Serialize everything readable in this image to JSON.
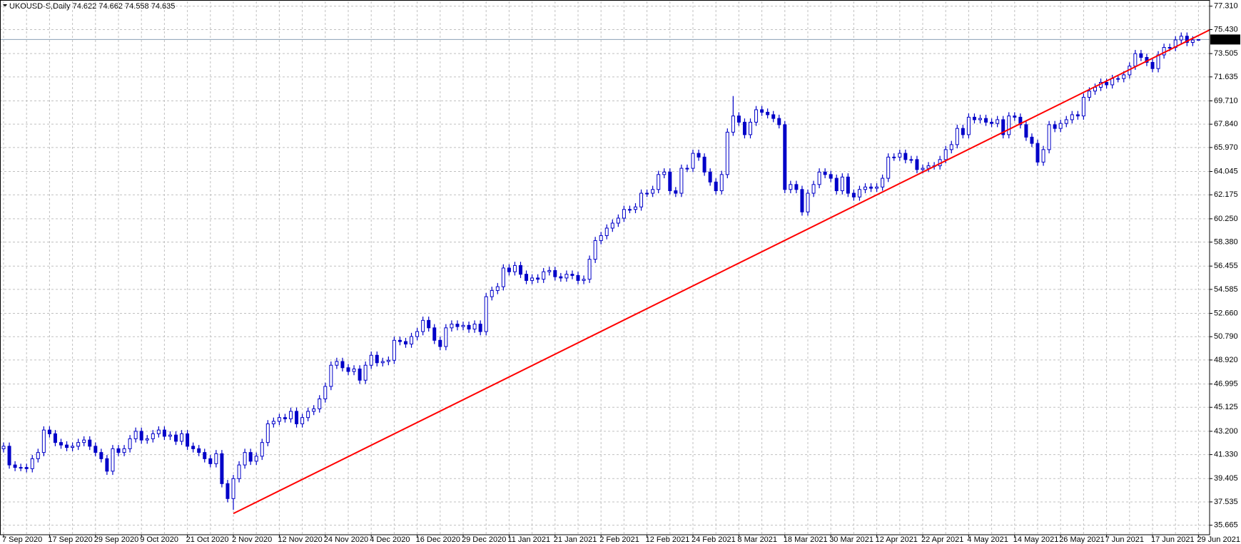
{
  "chart_data": {
    "type": "candlestick",
    "title": "UKOUSD-S,Daily  74.622 74.662 74.558 74.635",
    "categories": [
      "7 Sep 2020",
      null,
      null,
      null,
      null,
      null,
      null,
      null,
      "17 Sep 2020",
      null,
      null,
      null,
      null,
      null,
      null,
      null,
      "29 Sep 2020",
      null,
      null,
      null,
      null,
      null,
      null,
      null,
      "9 Oct 2020",
      null,
      null,
      null,
      null,
      null,
      null,
      null,
      "21 Oct 2020",
      null,
      null,
      null,
      null,
      null,
      null,
      null,
      "2 Nov 2020",
      null,
      null,
      null,
      null,
      null,
      null,
      null,
      "12 Nov 2020",
      null,
      null,
      null,
      null,
      null,
      null,
      null,
      "24 Nov 2020",
      null,
      null,
      null,
      null,
      null,
      null,
      null,
      "4 Dec 2020",
      null,
      null,
      null,
      null,
      null,
      null,
      null,
      "16 Dec 2020",
      null,
      null,
      null,
      null,
      null,
      null,
      null,
      "29 Dec 2020",
      null,
      null,
      null,
      null,
      null,
      null,
      null,
      "11 Jan 2021",
      null,
      null,
      null,
      null,
      null,
      null,
      null,
      "21 Jan 2021",
      null,
      null,
      null,
      null,
      null,
      null,
      null,
      "2 Feb 2021",
      null,
      null,
      null,
      null,
      null,
      null,
      null,
      "12 Feb 2021",
      null,
      null,
      null,
      null,
      null,
      null,
      null,
      "24 Feb 2021",
      null,
      null,
      null,
      null,
      null,
      null,
      null,
      "8 Mar 2021",
      null,
      null,
      null,
      null,
      null,
      null,
      null,
      "18 Mar 2021",
      null,
      null,
      null,
      null,
      null,
      null,
      null,
      "30 Mar 2021",
      null,
      null,
      null,
      null,
      null,
      null,
      null,
      "12 Apr 2021",
      null,
      null,
      null,
      null,
      null,
      null,
      null,
      "22 Apr 2021",
      null,
      null,
      null,
      null,
      null,
      null,
      null,
      "4 May 2021",
      null,
      null,
      null,
      null,
      null,
      null,
      null,
      "14 May 2021",
      null,
      null,
      null,
      null,
      null,
      null,
      null,
      "26 May 2021",
      null,
      null,
      null,
      null,
      null,
      null,
      null,
      "7 Jun 2021",
      null,
      null,
      null,
      null,
      null,
      null,
      null,
      "17 Jun 2021",
      null,
      null,
      null,
      null,
      null,
      null,
      null,
      "29 Jun 2021"
    ],
    "open": [
      41.8,
      42.0,
      40.5,
      40.3,
      40.3,
      40.2,
      41.0,
      41.5,
      43.3,
      43.0,
      42.3,
      42.1,
      41.9,
      42.0,
      42.3,
      42.5,
      42.0,
      41.5,
      41.0,
      40.0,
      41.8,
      41.5,
      41.8,
      42.6,
      43.2,
      42.5,
      42.6,
      43.0,
      43.3,
      42.8,
      42.9,
      42.4,
      43.0,
      42.0,
      41.8,
      41.5,
      41.0,
      40.6,
      41.4,
      39.0,
      37.8,
      39.4,
      40.5,
      41.5,
      40.8,
      41.2,
      42.3,
      43.8,
      44.0,
      44.3,
      44.2,
      44.8,
      43.8,
      44.3,
      44.8,
      45.0,
      45.8,
      46.8,
      48.5,
      48.8,
      48.3,
      48.0,
      48.2,
      47.3,
      48.5,
      49.3,
      48.7,
      48.8,
      48.9,
      50.5,
      50.4,
      50.2,
      50.8,
      51.2,
      52.1,
      51.5,
      50.5,
      50.0,
      51.5,
      51.8,
      51.6,
      51.7,
      51.4,
      51.8,
      51.2,
      54.0,
      54.5,
      54.8,
      56.3,
      56.0,
      56.5,
      55.8,
      55.3,
      55.5,
      55.4,
      56.0,
      56.1,
      55.6,
      55.5,
      55.8,
      55.7,
      55.3,
      55.4,
      57.0,
      58.5,
      58.9,
      59.5,
      59.9,
      60.3,
      61.0,
      61.0,
      61.2,
      62.3,
      62.3,
      62.6,
      63.8,
      64.0,
      62.5,
      62.3,
      64.3,
      64.3,
      65.5,
      65.2,
      64.0,
      63.2,
      62.5,
      63.8,
      67.2,
      68.5,
      68.0,
      67.0,
      68.0,
      69.0,
      68.8,
      68.6,
      68.3,
      67.8,
      62.6,
      63.0,
      62.6,
      60.8,
      62.3,
      63.0,
      64.0,
      63.8,
      63.5,
      62.5,
      63.6,
      62.3,
      62.0,
      62.6,
      62.8,
      62.7,
      62.8,
      63.5,
      65.2,
      65.2,
      65.5,
      65.0,
      65.0,
      64.2,
      64.3,
      64.5,
      64.5,
      65.0,
      65.8,
      66.2,
      67.5,
      67.0,
      68.4,
      68.2,
      68.3,
      68.0,
      67.9,
      68.2,
      67.0,
      68.5,
      68.4,
      67.8,
      66.8,
      66.3,
      64.8,
      65.8,
      67.8,
      67.5,
      67.9,
      68.2,
      68.6,
      68.5,
      70.0,
      70.5,
      70.8,
      71.2,
      71.0,
      71.5,
      71.5,
      71.8,
      72.5,
      73.5,
      73.2,
      72.8,
      72.3,
      73.4,
      74.0,
      74.0,
      74.6,
      74.9,
      74.4,
      74.622
    ],
    "high": [
      42.3,
      42.3,
      40.8,
      40.6,
      40.6,
      41.3,
      41.8,
      43.6,
      43.6,
      43.3,
      42.6,
      42.4,
      42.3,
      42.6,
      42.8,
      42.8,
      42.3,
      41.8,
      41.3,
      42.1,
      42.1,
      42.1,
      42.9,
      43.5,
      43.5,
      42.9,
      43.3,
      43.6,
      43.6,
      43.2,
      43.2,
      43.3,
      43.3,
      42.3,
      42.1,
      41.8,
      41.3,
      41.7,
      41.7,
      39.3,
      39.7,
      40.8,
      41.8,
      41.8,
      41.5,
      42.6,
      44.1,
      44.3,
      44.6,
      44.6,
      45.1,
      45.1,
      44.6,
      45.1,
      45.3,
      46.1,
      47.1,
      48.8,
      49.1,
      49.1,
      48.6,
      48.5,
      48.5,
      48.8,
      49.6,
      49.6,
      49.1,
      49.2,
      50.8,
      50.8,
      50.7,
      51.1,
      51.5,
      52.4,
      52.4,
      51.8,
      50.8,
      51.8,
      52.1,
      52.1,
      52.0,
      52.0,
      52.1,
      52.1,
      54.3,
      54.8,
      55.1,
      56.6,
      56.6,
      56.8,
      56.8,
      56.1,
      55.8,
      55.8,
      56.3,
      56.4,
      56.4,
      55.9,
      56.1,
      56.1,
      56.0,
      55.7,
      57.3,
      58.8,
      59.2,
      59.8,
      60.2,
      60.6,
      61.3,
      61.3,
      61.5,
      62.6,
      62.6,
      62.9,
      64.1,
      64.3,
      64.3,
      62.8,
      64.6,
      64.6,
      65.8,
      65.8,
      65.5,
      64.3,
      63.5,
      64.1,
      67.5,
      70.1,
      68.8,
      68.3,
      68.3,
      69.3,
      69.3,
      69.1,
      68.9,
      68.6,
      68.1,
      63.3,
      63.3,
      62.9,
      62.6,
      63.3,
      64.3,
      64.3,
      64.1,
      63.8,
      63.9,
      63.9,
      62.6,
      62.9,
      63.1,
      63.1,
      63.1,
      63.8,
      65.5,
      65.5,
      65.8,
      65.8,
      65.3,
      65.3,
      64.6,
      64.8,
      64.8,
      65.3,
      66.1,
      66.5,
      67.8,
      67.8,
      68.7,
      68.7,
      68.6,
      68.6,
      68.3,
      68.5,
      68.5,
      68.8,
      68.8,
      68.7,
      68.1,
      67.1,
      66.6,
      66.1,
      68.1,
      68.1,
      68.2,
      68.5,
      68.9,
      68.9,
      70.3,
      70.8,
      71.1,
      71.5,
      71.5,
      71.8,
      71.8,
      72.1,
      72.8,
      73.8,
      73.8,
      73.5,
      73.1,
      73.7,
      74.3,
      74.3,
      74.9,
      75.2,
      75.2,
      74.9,
      74.662
    ],
    "low": [
      41.5,
      40.2,
      40.0,
      40.0,
      39.9,
      39.9,
      40.7,
      41.2,
      42.7,
      42.0,
      41.8,
      41.6,
      41.6,
      41.7,
      42.0,
      41.7,
      41.2,
      40.7,
      39.7,
      39.7,
      41.2,
      41.2,
      41.5,
      42.3,
      42.2,
      42.2,
      42.3,
      42.7,
      42.5,
      42.5,
      42.1,
      42.1,
      41.7,
      41.5,
      41.2,
      40.7,
      40.3,
      40.3,
      38.7,
      37.5,
      36.9,
      39.1,
      40.2,
      40.5,
      40.5,
      40.9,
      42.0,
      43.5,
      43.7,
      43.9,
      43.9,
      43.5,
      43.5,
      44.0,
      44.5,
      44.7,
      45.5,
      46.5,
      48.2,
      48.0,
      47.7,
      47.7,
      47.0,
      47.0,
      48.2,
      48.4,
      48.4,
      48.5,
      48.6,
      50.1,
      49.9,
      49.9,
      50.5,
      50.9,
      51.2,
      50.2,
      49.7,
      49.7,
      51.2,
      51.3,
      51.3,
      51.1,
      51.1,
      50.9,
      50.9,
      53.7,
      54.2,
      54.5,
      55.7,
      55.7,
      55.5,
      55.0,
      55.0,
      55.1,
      55.1,
      55.7,
      55.3,
      55.2,
      55.2,
      55.4,
      55.0,
      55.0,
      55.1,
      56.7,
      58.2,
      58.6,
      59.2,
      59.6,
      60.0,
      60.7,
      60.7,
      60.9,
      62.0,
      62.0,
      62.3,
      63.5,
      62.2,
      62.0,
      62.0,
      64.0,
      64.0,
      64.9,
      63.7,
      62.9,
      62.2,
      62.2,
      63.5,
      66.9,
      67.7,
      66.7,
      66.7,
      67.7,
      68.5,
      68.3,
      68.0,
      67.5,
      62.3,
      62.3,
      62.3,
      60.5,
      60.5,
      62.0,
      62.7,
      63.5,
      63.2,
      62.2,
      62.2,
      62.0,
      61.7,
      61.7,
      62.3,
      62.4,
      62.4,
      62.5,
      63.2,
      64.9,
      64.9,
      64.7,
      64.7,
      63.9,
      63.9,
      64.0,
      64.2,
      64.2,
      64.7,
      65.5,
      65.9,
      66.7,
      66.7,
      67.9,
      67.9,
      67.7,
      67.6,
      67.6,
      66.7,
      66.7,
      68.1,
      67.5,
      66.5,
      66.0,
      64.5,
      64.5,
      65.5,
      67.2,
      67.2,
      67.6,
      67.9,
      68.2,
      68.2,
      69.7,
      70.2,
      70.5,
      70.7,
      70.7,
      71.2,
      71.2,
      71.5,
      72.2,
      72.9,
      72.5,
      72.0,
      72.0,
      73.1,
      73.7,
      73.7,
      74.3,
      74.1,
      74.1,
      74.558
    ],
    "close": [
      42.0,
      40.5,
      40.3,
      40.3,
      40.2,
      41.0,
      41.5,
      43.3,
      43.0,
      42.3,
      42.1,
      41.9,
      42.0,
      42.3,
      42.5,
      42.0,
      41.5,
      41.0,
      40.0,
      41.8,
      41.5,
      41.8,
      42.6,
      43.2,
      42.5,
      42.6,
      43.0,
      43.3,
      42.8,
      42.9,
      42.4,
      43.0,
      42.0,
      41.8,
      41.5,
      41.0,
      40.6,
      41.4,
      39.0,
      37.8,
      39.4,
      40.5,
      41.5,
      40.8,
      41.2,
      42.3,
      43.8,
      44.0,
      44.3,
      44.2,
      44.8,
      43.8,
      44.3,
      44.8,
      45.0,
      45.8,
      46.8,
      48.5,
      48.8,
      48.3,
      48.0,
      48.2,
      47.3,
      48.5,
      49.3,
      48.7,
      48.8,
      48.9,
      50.5,
      50.4,
      50.2,
      50.8,
      51.2,
      52.1,
      51.5,
      50.5,
      50.0,
      51.5,
      51.8,
      51.6,
      51.7,
      51.4,
      51.8,
      51.2,
      54.0,
      54.5,
      54.8,
      56.3,
      56.0,
      56.5,
      55.8,
      55.3,
      55.5,
      55.4,
      56.0,
      56.1,
      55.6,
      55.5,
      55.8,
      55.7,
      55.3,
      55.4,
      57.0,
      58.5,
      58.9,
      59.5,
      59.9,
      60.3,
      61.0,
      61.0,
      61.2,
      62.3,
      62.3,
      62.6,
      63.8,
      64.0,
      62.5,
      62.3,
      64.3,
      64.3,
      65.5,
      65.2,
      64.0,
      63.2,
      62.5,
      63.8,
      67.2,
      68.5,
      68.0,
      67.0,
      68.0,
      69.0,
      68.8,
      68.6,
      68.3,
      67.8,
      62.6,
      63.0,
      62.6,
      60.8,
      62.3,
      63.0,
      64.0,
      63.8,
      63.5,
      62.5,
      63.6,
      62.3,
      62.0,
      62.6,
      62.8,
      62.7,
      62.8,
      63.5,
      65.2,
      65.2,
      65.5,
      65.0,
      65.0,
      64.2,
      64.3,
      64.5,
      64.5,
      65.0,
      65.8,
      66.2,
      67.5,
      67.0,
      68.4,
      68.2,
      68.3,
      68.0,
      67.9,
      68.2,
      67.0,
      68.5,
      68.4,
      67.8,
      66.8,
      66.3,
      64.8,
      65.8,
      67.8,
      67.5,
      67.9,
      68.2,
      68.6,
      68.5,
      70.0,
      70.5,
      70.8,
      71.2,
      71.0,
      71.5,
      71.5,
      71.8,
      72.5,
      73.5,
      73.2,
      72.8,
      72.3,
      73.4,
      74.0,
      74.0,
      74.6,
      74.9,
      74.4,
      74.6,
      74.635
    ],
    "color": "#0000c8",
    "up_fill": "#ffffff",
    "ylim": [
      34.9,
      77.69
    ],
    "yticks": [
      35.665,
      37.535,
      39.405,
      {
        "value": 41.33,
        "label": "41.330"
      },
      {
        "value": 43.2,
        "label": "43.200"
      },
      45.125,
      46.995,
      {
        "value": 48.92,
        "label": "48.920"
      },
      {
        "value": 50.79,
        "label": "50.790"
      },
      {
        "value": 52.66,
        "label": "52.660"
      },
      54.585,
      56.455,
      {
        "value": 58.38,
        "label": "58.380"
      },
      {
        "value": 60.25,
        "label": "60.250"
      },
      62.175,
      64.045,
      {
        "value": 65.97,
        "label": "65.970"
      },
      {
        "value": 67.84,
        "label": "67.840"
      },
      {
        "value": 69.71,
        "label": "69.710"
      },
      71.635,
      73.505,
      {
        "value": 75.43,
        "label": "75.430"
      },
      {
        "value": 77.31,
        "label": "77.310"
      }
    ],
    "grid": true,
    "current_price": 74.635,
    "current_price_color": "#8aa0b4",
    "trend_line": {
      "color": "#ff0000",
      "values": [
        36.6,
        75.4
      ]
    }
  }
}
